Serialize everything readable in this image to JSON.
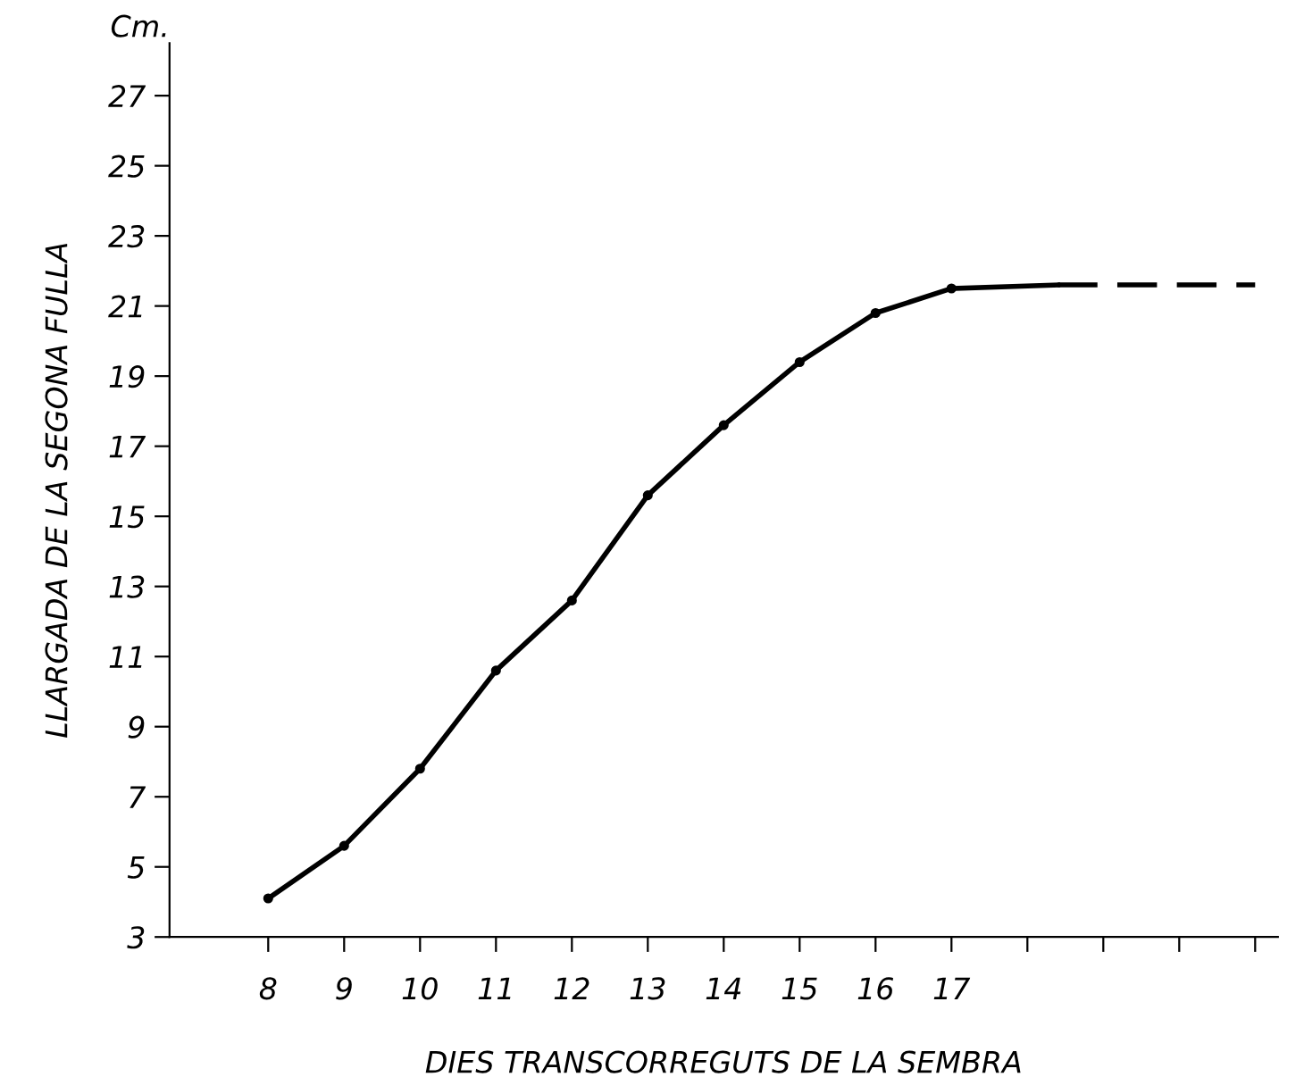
{
  "chart_data": {
    "type": "line",
    "xlabel": "DIES TRANSCORREGUTS DE LA SEMBRA",
    "ylabel": "LLARGADA DE LA SEGONA FULLA",
    "annotations": [
      "Cm."
    ],
    "series": [
      {
        "color": "#000000",
        "marker": "circle",
        "line_style": "solid",
        "x": [
          8,
          9,
          10,
          11,
          12,
          13,
          14,
          15,
          16,
          17
        ],
        "values": [
          4.1,
          5.6,
          7.8,
          10.6,
          12.6,
          15.6,
          17.6,
          19.4,
          20.8,
          21.5
        ]
      },
      {
        "color": "#000000",
        "marker": "none",
        "line_style": "solid",
        "x": [
          17,
          18.4
        ],
        "values": [
          21.5,
          21.6
        ]
      },
      {
        "color": "#000000",
        "marker": "none",
        "line_style": "dashed",
        "x": [
          18.4,
          21
        ],
        "values": [
          21.6,
          21.6
        ]
      }
    ],
    "xlim": [
      6.7,
      21.3
    ],
    "ylim": [
      3,
      28.5
    ],
    "xticks": [
      8,
      9,
      10,
      11,
      12,
      13,
      14,
      15,
      16,
      17,
      {
        "value": 18,
        "label": null
      },
      {
        "value": 19,
        "label": null
      },
      {
        "value": 20,
        "label": null
      },
      {
        "value": 21,
        "label": null
      }
    ],
    "yticks": [
      3,
      5,
      7,
      9,
      11,
      13,
      15,
      17,
      19,
      21,
      23,
      25,
      27
    ],
    "grid": false,
    "legend": false
  }
}
